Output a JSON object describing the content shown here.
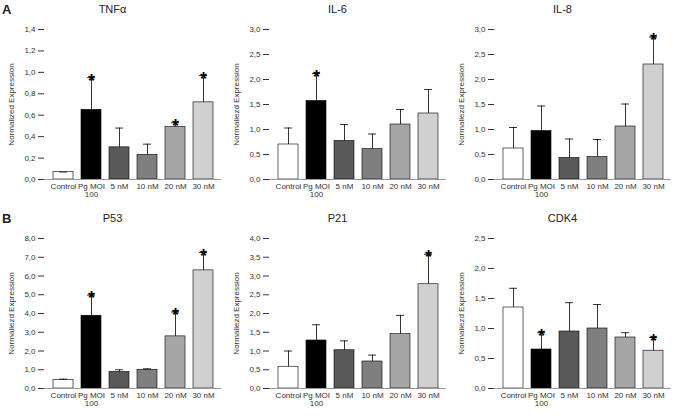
{
  "chart_data": [
    {
      "type": "bar",
      "panel": "A",
      "title": "TNFα",
      "ylabel": "Normalized Expression",
      "categories": [
        "Control",
        "Pg MOI 100",
        "5 nM",
        "10 nM",
        "20 nM",
        "30 nM"
      ],
      "values": [
        0.07,
        0.65,
        0.3,
        0.23,
        0.49,
        0.72
      ],
      "errors": [
        0.0,
        0.3,
        0.18,
        0.1,
        0.04,
        0.25
      ],
      "significance": [
        null,
        "*",
        null,
        null,
        "*",
        "*"
      ],
      "colors": [
        "#ffffff",
        "#000000",
        "#595959",
        "#7f7f7f",
        "#a6a6a6",
        "#d0d0d0"
      ],
      "ylim": [
        0,
        1.4
      ],
      "yticks": [
        {
          "value": 0,
          "label": "0,0"
        },
        {
          "value": 0.2,
          "label": "0,2"
        },
        {
          "value": 0.4,
          "label": "0,4"
        },
        {
          "value": 0.6,
          "label": "0,6"
        },
        {
          "value": 0.8,
          "label": "0,8"
        },
        {
          "value": 1.0,
          "label": "1,0"
        },
        {
          "value": 1.2,
          "label": "1,2"
        },
        {
          "value": 1.4,
          "label": "1,4"
        }
      ]
    },
    {
      "type": "bar",
      "title": "IL-6",
      "ylabel": "Normaliezd Expression",
      "categories": [
        "Control",
        "Pg MOI 100",
        "5 nM",
        "10 nM",
        "20 nM",
        "30 nM"
      ],
      "values": [
        0.7,
        1.57,
        0.77,
        0.61,
        1.1,
        1.32
      ],
      "errors": [
        0.33,
        0.55,
        0.33,
        0.3,
        0.3,
        0.48
      ],
      "significance": [
        null,
        "*",
        null,
        null,
        null,
        null
      ],
      "colors": [
        "#ffffff",
        "#000000",
        "#595959",
        "#7f7f7f",
        "#a6a6a6",
        "#d0d0d0"
      ],
      "ylim": [
        0,
        3.0
      ],
      "yticks": [
        {
          "value": 0,
          "label": "0,0"
        },
        {
          "value": 0.5,
          "label": "0,5"
        },
        {
          "value": 1.0,
          "label": "1,0"
        },
        {
          "value": 1.5,
          "label": "1,5"
        },
        {
          "value": 2.0,
          "label": "2,0"
        },
        {
          "value": 2.5,
          "label": "2,5"
        },
        {
          "value": 3.0,
          "label": "3,0"
        }
      ]
    },
    {
      "type": "bar",
      "title": "IL-8",
      "ylabel": "Normaliezd Expression",
      "categories": [
        "Control",
        "Pg MOI 100",
        "5 nM",
        "10 nM",
        "20 nM",
        "30 nM"
      ],
      "values": [
        0.62,
        0.97,
        0.43,
        0.45,
        1.06,
        2.3
      ],
      "errors": [
        0.42,
        0.5,
        0.38,
        0.35,
        0.45,
        0.55
      ],
      "significance": [
        null,
        null,
        null,
        null,
        null,
        "*"
      ],
      "colors": [
        "#ffffff",
        "#000000",
        "#595959",
        "#7f7f7f",
        "#a6a6a6",
        "#d0d0d0"
      ],
      "ylim": [
        0,
        3.0
      ],
      "yticks": [
        {
          "value": 0,
          "label": "0,0"
        },
        {
          "value": 0.5,
          "label": "0,5"
        },
        {
          "value": 1.0,
          "label": "1,0"
        },
        {
          "value": 1.5,
          "label": "1,5"
        },
        {
          "value": 2.0,
          "label": "2,0"
        },
        {
          "value": 2.5,
          "label": "2,5"
        },
        {
          "value": 3.0,
          "label": "3,0"
        }
      ]
    },
    {
      "type": "bar",
      "panel": "B",
      "title": "P53",
      "ylabel": "Normaliezd Expression",
      "categories": [
        "Control",
        "Pg MOI 100",
        "5 nM",
        "10 nM",
        "20 nM",
        "30 nM"
      ],
      "values": [
        0.45,
        3.88,
        0.88,
        1.0,
        2.78,
        6.3
      ],
      "errors": [
        0.05,
        1.1,
        0.12,
        0.05,
        1.3,
        0.95
      ],
      "significance": [
        null,
        "*",
        null,
        null,
        "*",
        "*"
      ],
      "colors": [
        "#ffffff",
        "#000000",
        "#595959",
        "#7f7f7f",
        "#a6a6a6",
        "#d0d0d0"
      ],
      "ylim": [
        0,
        8.0
      ],
      "yticks": [
        {
          "value": 0,
          "label": "0,0"
        },
        {
          "value": 1,
          "label": "1,0"
        },
        {
          "value": 2,
          "label": "2,0"
        },
        {
          "value": 3,
          "label": "3,0"
        },
        {
          "value": 4,
          "label": "4,0"
        },
        {
          "value": 5,
          "label": "5,0"
        },
        {
          "value": 6,
          "label": "6,0"
        },
        {
          "value": 7,
          "label": "7,0"
        },
        {
          "value": 8,
          "label": "8,0"
        }
      ]
    },
    {
      "type": "bar",
      "title": "P21",
      "ylabel": "Normaliezd Expression",
      "categories": [
        "Control",
        "Pg MOI 100",
        "5 nM",
        "10 nM",
        "20 nM",
        "30 nM"
      ],
      "values": [
        0.58,
        1.28,
        1.02,
        0.72,
        1.45,
        2.78
      ],
      "errors": [
        0.42,
        0.42,
        0.25,
        0.17,
        0.5,
        0.8
      ],
      "significance": [
        null,
        null,
        null,
        null,
        null,
        "*"
      ],
      "colors": [
        "#ffffff",
        "#000000",
        "#595959",
        "#7f7f7f",
        "#a6a6a6",
        "#d0d0d0"
      ],
      "ylim": [
        0,
        4.0
      ],
      "yticks": [
        {
          "value": 0,
          "label": "0,0"
        },
        {
          "value": 0.5,
          "label": "0,5"
        },
        {
          "value": 1.0,
          "label": "1,0"
        },
        {
          "value": 1.5,
          "label": "1,5"
        },
        {
          "value": 2.0,
          "label": "2,0"
        },
        {
          "value": 2.5,
          "label": "2,5"
        },
        {
          "value": 3.0,
          "label": "3,0"
        },
        {
          "value": 3.5,
          "label": "3,5"
        },
        {
          "value": 4.0,
          "label": "4,0"
        }
      ]
    },
    {
      "type": "bar",
      "title": "CDK4",
      "ylabel": "Normaliezd Expression",
      "categories": [
        "Control",
        "Pg MOI 100",
        "5 nM",
        "10 nM",
        "20 nM",
        "30 nM"
      ],
      "values": [
        1.35,
        0.65,
        0.95,
        1.0,
        0.85,
        0.63
      ],
      "errors": [
        0.32,
        0.28,
        0.48,
        0.4,
        0.08,
        0.22
      ],
      "significance": [
        null,
        "*",
        null,
        null,
        null,
        "*"
      ],
      "colors": [
        "#ffffff",
        "#000000",
        "#595959",
        "#7f7f7f",
        "#a6a6a6",
        "#d0d0d0"
      ],
      "ylim": [
        0,
        2.5
      ],
      "yticks": [
        {
          "value": 0,
          "label": "0,0"
        },
        {
          "value": 0.5,
          "label": "0,5"
        },
        {
          "value": 1.0,
          "label": "1,0"
        },
        {
          "value": 1.5,
          "label": "1,5"
        },
        {
          "value": 2.0,
          "label": "2,0"
        },
        {
          "value": 2.5,
          "label": "2,5"
        }
      ]
    }
  ]
}
